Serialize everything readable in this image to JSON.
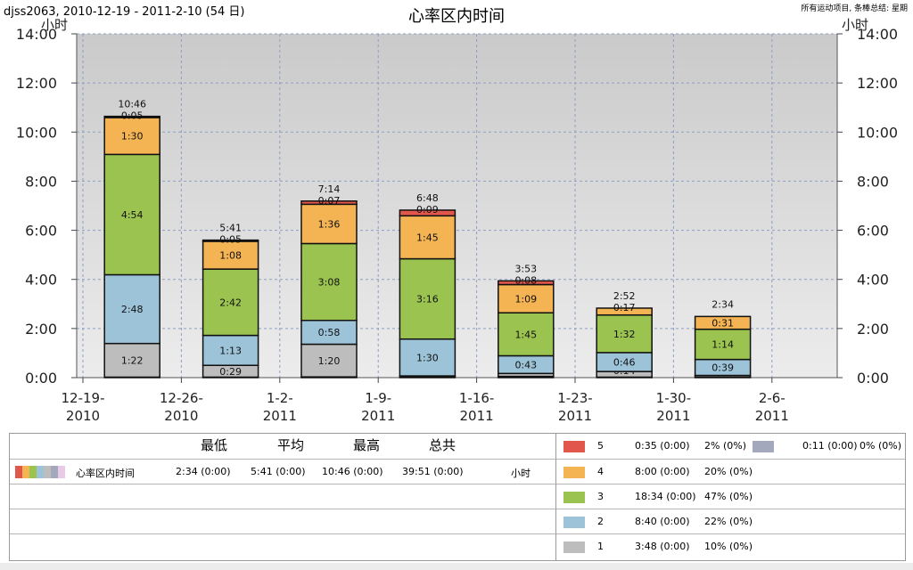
{
  "header": {
    "left": "djss2063, 2010-12-19 - 2011-2-10 (54 日)",
    "title": "心率区内时间",
    "right": "所有运动项目, 条棒总结: 星期"
  },
  "chart_data": {
    "type": "bar",
    "stacked": true,
    "ylabel": "小时",
    "ylabel_right": "小时",
    "ylim": [
      0,
      14
    ],
    "y_ticks": [
      "0:00",
      "2:00",
      "4:00",
      "6:00",
      "8:00",
      "10:00",
      "12:00",
      "14:00"
    ],
    "y_ticks_right": [
      "0:00",
      "2:00",
      "4:00",
      "6:00",
      "8:00",
      "10:00",
      "12:00",
      "14:00"
    ],
    "x_ticks": [
      {
        "line1": "12-19-",
        "line2": "2010"
      },
      {
        "line1": "12-26-",
        "line2": "2010"
      },
      {
        "line1": "1-2-",
        "line2": "2011"
      },
      {
        "line1": "1-9-",
        "line2": "2011"
      },
      {
        "line1": "1-16-",
        "line2": "2011"
      },
      {
        "line1": "1-23-",
        "line2": "2011"
      },
      {
        "line1": "1-30-",
        "line2": "2011"
      },
      {
        "line1": "2-6-",
        "line2": "2011"
      }
    ],
    "grid": true,
    "series": [
      {
        "zone": "0",
        "color": "#a3a8bd",
        "values": [
          0.02,
          0.02,
          0.03,
          0.05,
          0.05,
          0.02,
          0.02
        ]
      },
      {
        "zone": "1",
        "color": "#bdbdbd",
        "values": [
          1.37,
          0.48,
          1.33,
          0.02,
          0.12,
          0.23,
          0.07
        ]
      },
      {
        "zone": "2",
        "color": "#9cc3d8",
        "values": [
          2.8,
          1.22,
          0.97,
          1.5,
          0.72,
          0.77,
          0.65
        ]
      },
      {
        "zone": "3",
        "color": "#9bc34f",
        "values": [
          4.9,
          2.7,
          3.13,
          3.27,
          1.75,
          1.53,
          1.23
        ]
      },
      {
        "zone": "4",
        "color": "#f4b454",
        "values": [
          1.5,
          1.13,
          1.6,
          1.75,
          1.15,
          0.28,
          0.52
        ]
      },
      {
        "zone": "5",
        "color": "#e2574c",
        "values": [
          0.05,
          0.05,
          0.13,
          0.23,
          0.15,
          0.0,
          0.0
        ]
      }
    ],
    "bar_labels": [
      [
        "",
        "1:22",
        "2:48",
        "4:54",
        "1:30",
        "0:05"
      ],
      [
        "",
        "0:29",
        "1:13",
        "2:42",
        "1:08",
        "0:05"
      ],
      [
        "",
        "1:20",
        "0:58",
        "3:08",
        "1:36",
        "0:07"
      ],
      [
        "",
        "",
        "1:30",
        "3:16",
        "1:45",
        "0:09"
      ],
      [
        "",
        "",
        "0:43",
        "1:45",
        "1:09",
        "0:08"
      ],
      [
        "",
        "0:14",
        "0:46",
        "1:32",
        "0:17",
        ""
      ],
      [
        "",
        "",
        "0:39",
        "1:14",
        "0:31",
        ""
      ]
    ],
    "totals": [
      "10:46",
      "5:41",
      "7:14",
      "6:48",
      "3:53",
      "2:52",
      "2:34"
    ]
  },
  "summary": {
    "headers": {
      "min": "最低",
      "avg": "平均",
      "max": "最高",
      "total": "总共"
    },
    "row": {
      "name": "心率区内时间",
      "min": "2:34 (0:00)",
      "avg": "5:41 (0:00)",
      "max": "10:46 (0:00)",
      "total": "39:51 (0:00)",
      "unit": "小时"
    },
    "legend_colors": [
      "#e2574c",
      "#f4b454",
      "#9bc34f",
      "#9cc3d8",
      "#bdbdbd",
      "#a3a8bd",
      "#e8c9e8"
    ]
  },
  "zones": [
    {
      "label": "5",
      "color": "#e2574c",
      "time": "0:35 (0:00)",
      "pct": "2% (0%)"
    },
    {
      "label": "4",
      "color": "#f4b454",
      "time": "8:00 (0:00)",
      "pct": "20% (0%)"
    },
    {
      "label": "3",
      "color": "#9bc34f",
      "time": "18:34 (0:00)",
      "pct": "47% (0%)"
    },
    {
      "label": "2",
      "color": "#9cc3d8",
      "time": "8:40 (0:00)",
      "pct": "22% (0%)"
    },
    {
      "label": "1",
      "color": "#bdbdbd",
      "time": "3:48 (0:00)",
      "pct": "10% (0%)"
    }
  ],
  "zone_extra": {
    "color": "#a3a8bd",
    "time": "0:11 (0:00)",
    "pct": "0% (0%)"
  }
}
